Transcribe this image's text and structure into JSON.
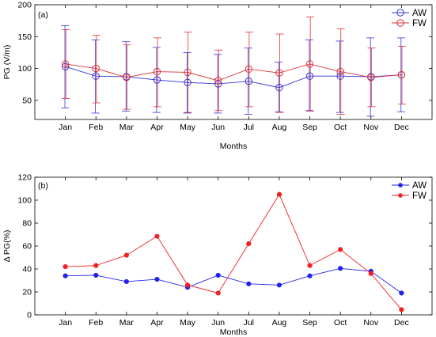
{
  "chart_data": [
    {
      "type": "line",
      "panel_label": "(a)",
      "ylabel": "PG (V/m)",
      "xlabel": "Months",
      "ylim": [
        20,
        200
      ],
      "yticks": [
        50,
        100,
        150,
        200
      ],
      "categories": [
        "Jan",
        "Feb",
        "Mar",
        "Apr",
        "May",
        "Jun",
        "Jul",
        "Aug",
        "Sep",
        "Oct",
        "Nov",
        "Dec"
      ],
      "error_bars": true,
      "marker": "open-circle",
      "legend_position": "top-right",
      "series": [
        {
          "name": "AW",
          "color": "#3333dd",
          "values": [
            103,
            88,
            87,
            82,
            78,
            76,
            80,
            70,
            88,
            88,
            87,
            90
          ],
          "err_low": [
            38,
            30,
            33,
            31,
            30,
            30,
            28,
            32,
            34,
            31,
            25,
            32
          ],
          "err_high": [
            167,
            145,
            142,
            133,
            125,
            122,
            132,
            110,
            145,
            143,
            148,
            148
          ]
        },
        {
          "name": "FW",
          "color": "#dd3333",
          "values": [
            107,
            100,
            86,
            95,
            94,
            81,
            99,
            93,
            107,
            95,
            86,
            90
          ],
          "err_low": [
            53,
            46,
            36,
            40,
            31,
            34,
            40,
            31,
            33,
            28,
            40,
            44
          ],
          "err_high": [
            161,
            152,
            137,
            148,
            157,
            129,
            157,
            154,
            181,
            162,
            132,
            135
          ]
        }
      ]
    },
    {
      "type": "line",
      "panel_label": "(b)",
      "ylabel": "Δ PG(%)",
      "xlabel": "Months",
      "ylim": [
        0,
        120
      ],
      "yticks": [
        0,
        20,
        40,
        60,
        80,
        100,
        120
      ],
      "categories": [
        "Jan",
        "Feb",
        "Mar",
        "Apr",
        "May",
        "Jun",
        "Jul",
        "Aug",
        "Sep",
        "Oct",
        "Nov",
        "Dec"
      ],
      "marker": "filled-circle",
      "legend_position": "top-right",
      "series": [
        {
          "name": "AW",
          "color": "#2222ee",
          "values": [
            34,
            34.5,
            29,
            31,
            24,
            34.5,
            27,
            26,
            34,
            40.5,
            38,
            19
          ]
        },
        {
          "name": "FW",
          "color": "#ee2222",
          "values": [
            42,
            43,
            52,
            68.5,
            26,
            19,
            62,
            105,
            43,
            57,
            36,
            4.5
          ]
        }
      ]
    }
  ]
}
